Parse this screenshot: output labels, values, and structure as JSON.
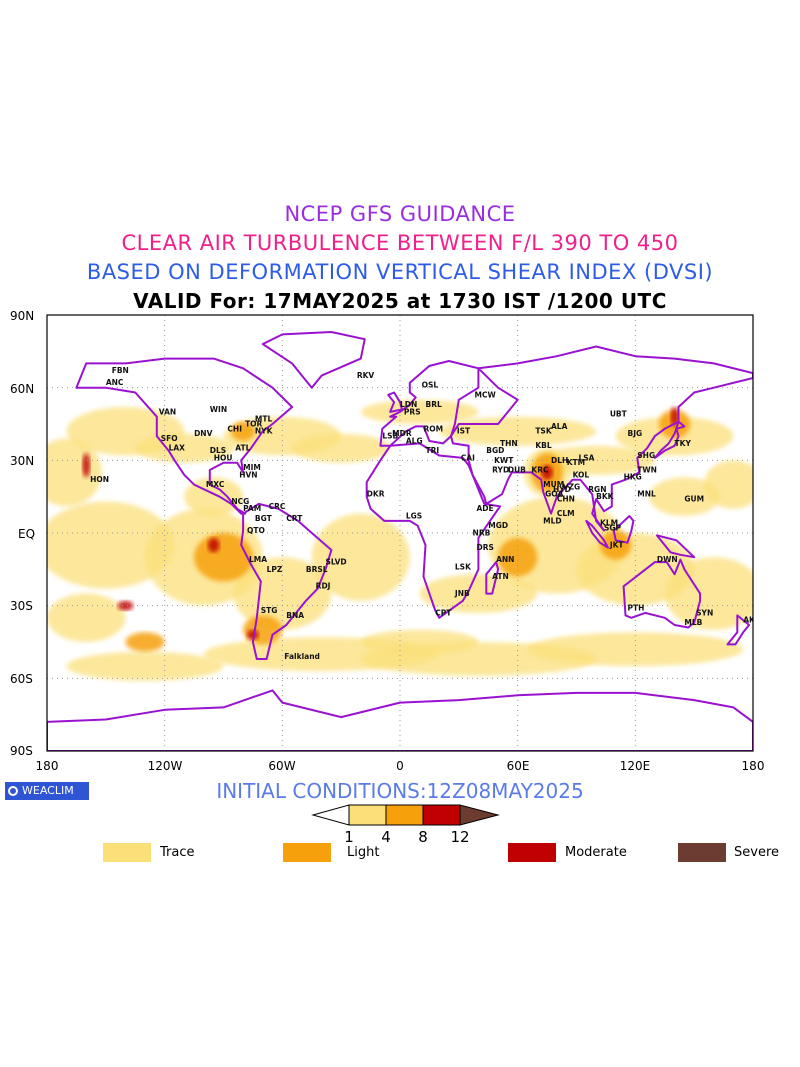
{
  "titles": {
    "line1": "NCEP GFS GUIDANCE",
    "line2": "CLEAR AIR TURBULENCE BETWEEN F/L 390 TO 450",
    "line3": "BASED ON DEFORMATION VERTICAL SHEAR INDEX (DVSI)",
    "line4": "VALID For: 17MAY2025 at 1730 IST /1200 UTC"
  },
  "colors": {
    "line1": "#9b2de0",
    "line2": "#f0208a",
    "line3": "#2e5ce6",
    "line4": "#000000",
    "coast": "#9a12d0",
    "trace": "#fbe07a",
    "light": "#f6a10c",
    "moderate": "#c00000",
    "severe": "#6b3c2f",
    "logo_bg": "#2f55d4",
    "init": "#5b7be8"
  },
  "axes": {
    "lat_labels": [
      "90N",
      "60N",
      "30N",
      "EQ",
      "30S",
      "60S",
      "90S"
    ],
    "lon_labels": [
      "180",
      "120W",
      "60W",
      "0",
      "60E",
      "120E",
      "180"
    ]
  },
  "cities": [
    {
      "name": "ANC",
      "lat": 61,
      "lon": -150
    },
    {
      "name": "FBN",
      "lat": 66,
      "lon": -147
    },
    {
      "name": "VAN",
      "lat": 49,
      "lon": -123
    },
    {
      "name": "WIN",
      "lat": 50,
      "lon": -97
    },
    {
      "name": "MTL",
      "lat": 46,
      "lon": -74
    },
    {
      "name": "TOR",
      "lat": 44,
      "lon": -79
    },
    {
      "name": "NYK",
      "lat": 41,
      "lon": -74
    },
    {
      "name": "CHI",
      "lat": 42,
      "lon": -88
    },
    {
      "name": "SFO",
      "lat": 38,
      "lon": -122
    },
    {
      "name": "DNV",
      "lat": 40,
      "lon": -105
    },
    {
      "name": "LAX",
      "lat": 34,
      "lon": -118
    },
    {
      "name": "ATL",
      "lat": 34,
      "lon": -84
    },
    {
      "name": "DLS",
      "lat": 33,
      "lon": -97
    },
    {
      "name": "HOU",
      "lat": 30,
      "lon": -95
    },
    {
      "name": "MIM",
      "lat": 26,
      "lon": -80
    },
    {
      "name": "HON",
      "lat": 21,
      "lon": -158
    },
    {
      "name": "MXC",
      "lat": 19,
      "lon": -99
    },
    {
      "name": "HVN",
      "lat": 23,
      "lon": -82
    },
    {
      "name": "NCG",
      "lat": 12,
      "lon": -86
    },
    {
      "name": "PAM",
      "lat": 9,
      "lon": -80
    },
    {
      "name": "BGT",
      "lat": 5,
      "lon": -74
    },
    {
      "name": "CRC",
      "lat": 10,
      "lon": -67
    },
    {
      "name": "CRT",
      "lat": 5,
      "lon": -58
    },
    {
      "name": "QTO",
      "lat": 0,
      "lon": -78
    },
    {
      "name": "LMA",
      "lat": -12,
      "lon": -77
    },
    {
      "name": "LPZ",
      "lat": -16,
      "lon": -68
    },
    {
      "name": "BRSL",
      "lat": -16,
      "lon": -48
    },
    {
      "name": "SLVD",
      "lat": -13,
      "lon": -38
    },
    {
      "name": "RDJ",
      "lat": -23,
      "lon": -43
    },
    {
      "name": "STG",
      "lat": -33,
      "lon": -71
    },
    {
      "name": "BNA",
      "lat": -35,
      "lon": -58
    },
    {
      "name": "Falkland",
      "lat": -52,
      "lon": -59
    },
    {
      "name": "RKV",
      "lat": 64,
      "lon": -22
    },
    {
      "name": "OSL",
      "lat": 60,
      "lon": 11
    },
    {
      "name": "MCW",
      "lat": 56,
      "lon": 38
    },
    {
      "name": "LDN",
      "lat": 52,
      "lon": 0
    },
    {
      "name": "PRS",
      "lat": 49,
      "lon": 2
    },
    {
      "name": "BRL",
      "lat": 52,
      "lon": 13
    },
    {
      "name": "ROM",
      "lat": 42,
      "lon": 12
    },
    {
      "name": "MDR",
      "lat": 40,
      "lon": -4
    },
    {
      "name": "LSB",
      "lat": 39,
      "lon": -9
    },
    {
      "name": "IST",
      "lat": 41,
      "lon": 29
    },
    {
      "name": "ALG",
      "lat": 37,
      "lon": 3
    },
    {
      "name": "TRI",
      "lat": 33,
      "lon": 13
    },
    {
      "name": "CAI",
      "lat": 30,
      "lon": 31
    },
    {
      "name": "KWT",
      "lat": 29,
      "lon": 48
    },
    {
      "name": "BGD",
      "lat": 33,
      "lon": 44
    },
    {
      "name": "THN",
      "lat": 36,
      "lon": 51
    },
    {
      "name": "RYD",
      "lat": 25,
      "lon": 47
    },
    {
      "name": "DUB",
      "lat": 25,
      "lon": 55
    },
    {
      "name": "KRC",
      "lat": 25,
      "lon": 67
    },
    {
      "name": "DLH",
      "lat": 29,
      "lon": 77
    },
    {
      "name": "KBL",
      "lat": 35,
      "lon": 69
    },
    {
      "name": "TSK",
      "lat": 41,
      "lon": 69
    },
    {
      "name": "ALA",
      "lat": 43,
      "lon": 77
    },
    {
      "name": "LSA",
      "lat": 30,
      "lon": 91
    },
    {
      "name": "KTM",
      "lat": 28,
      "lon": 85
    },
    {
      "name": "MUM",
      "lat": 19,
      "lon": 73
    },
    {
      "name": "KOL",
      "lat": 23,
      "lon": 88
    },
    {
      "name": "VZG",
      "lat": 18,
      "lon": 83
    },
    {
      "name": "HYD",
      "lat": 17,
      "lon": 78
    },
    {
      "name": "CHN",
      "lat": 13,
      "lon": 80
    },
    {
      "name": "GOA",
      "lat": 15,
      "lon": 74
    },
    {
      "name": "CLM",
      "lat": 7,
      "lon": 80
    },
    {
      "name": "MLD",
      "lat": 4,
      "lon": 73
    },
    {
      "name": "RGN",
      "lat": 17,
      "lon": 96
    },
    {
      "name": "BKK",
      "lat": 14,
      "lon": 100
    },
    {
      "name": "KLM",
      "lat": 3,
      "lon": 102
    },
    {
      "name": "SGP",
      "lat": 1,
      "lon": 104
    },
    {
      "name": "JKT",
      "lat": -6,
      "lon": 107
    },
    {
      "name": "HKG",
      "lat": 22,
      "lon": 114
    },
    {
      "name": "MNL",
      "lat": 15,
      "lon": 121
    },
    {
      "name": "TWN",
      "lat": 25,
      "lon": 121
    },
    {
      "name": "SHG",
      "lat": 31,
      "lon": 121
    },
    {
      "name": "BJG",
      "lat": 40,
      "lon": 116
    },
    {
      "name": "TKY",
      "lat": 36,
      "lon": 140
    },
    {
      "name": "UBT",
      "lat": 48,
      "lon": 107
    },
    {
      "name": "GUM",
      "lat": 13,
      "lon": 145
    },
    {
      "name": "DWN",
      "lat": -12,
      "lon": 131
    },
    {
      "name": "PTH",
      "lat": -32,
      "lon": 116
    },
    {
      "name": "SYN",
      "lat": -34,
      "lon": 151
    },
    {
      "name": "MLB",
      "lat": -38,
      "lon": 145
    },
    {
      "name": "AKL",
      "lat": -37,
      "lon": 175
    },
    {
      "name": "ADE",
      "lat": 9,
      "lon": 39
    },
    {
      "name": "NRB",
      "lat": -1,
      "lon": 37
    },
    {
      "name": "DRS",
      "lat": -7,
      "lon": 39
    },
    {
      "name": "MGD",
      "lat": 2,
      "lon": 45
    },
    {
      "name": "ANN",
      "lat": -12,
      "lon": 49
    },
    {
      "name": "ATN",
      "lat": -19,
      "lon": 47
    },
    {
      "name": "JNB",
      "lat": -26,
      "lon": 28
    },
    {
      "name": "CPT",
      "lat": -34,
      "lon": 18
    },
    {
      "name": "LGS",
      "lat": 6,
      "lon": 3
    },
    {
      "name": "DKR",
      "lat": 15,
      "lon": -17
    },
    {
      "name": "LSK",
      "lat": -15,
      "lon": 28
    }
  ],
  "init_conditions": "INITIAL CONDITIONS:12Z08MAY2025",
  "logo_text": "WEACLIM",
  "colorbar": {
    "ticks": [
      "1",
      "4",
      "8",
      "12"
    ]
  },
  "legend": [
    {
      "label": "Trace",
      "color": "#fbe07a"
    },
    {
      "label": "Light",
      "color": "#f6a10c"
    },
    {
      "label": "Moderate",
      "color": "#c00000"
    },
    {
      "label": "Severe",
      "color": "#6b3c2f"
    }
  ]
}
